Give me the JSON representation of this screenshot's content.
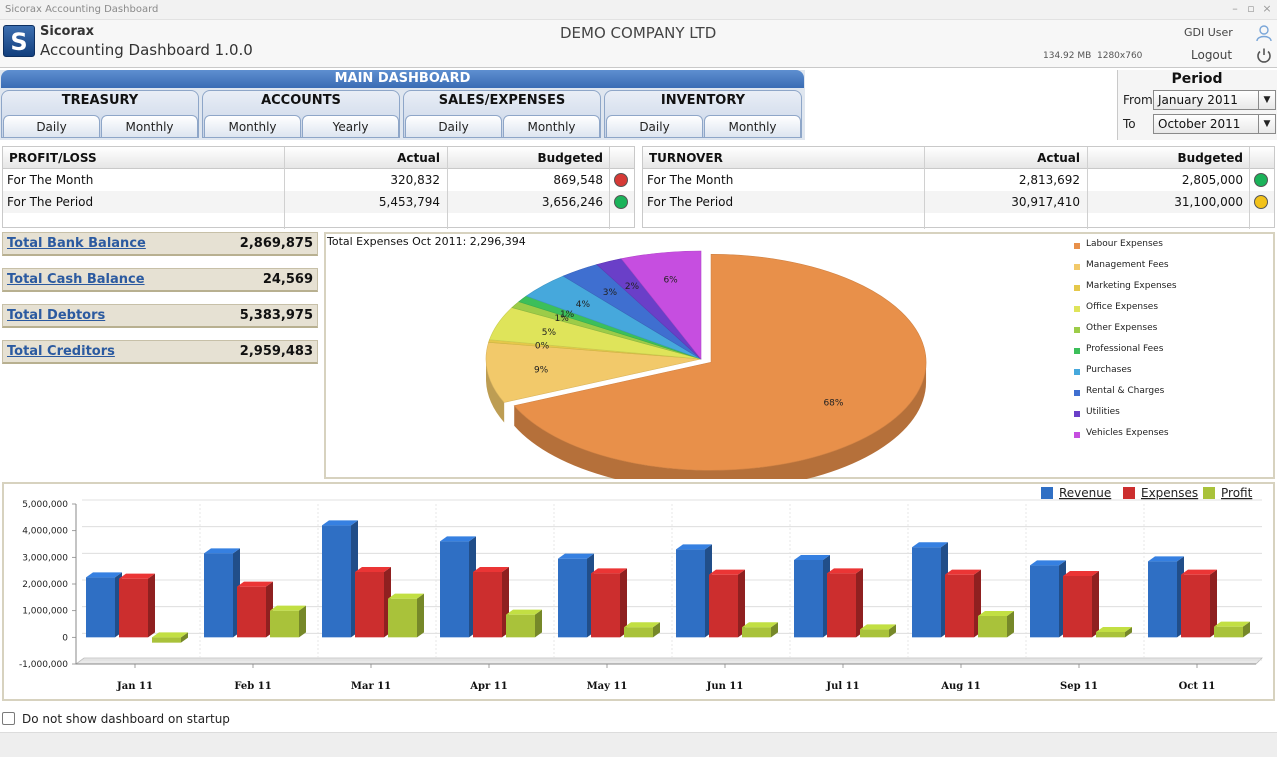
{
  "window": {
    "title": "Sicorax Accounting Dashboard",
    "controls": [
      "–",
      "▫",
      "×"
    ]
  },
  "header": {
    "brand": "Sicorax",
    "app_title": "Accounting Dashboard 1.0.0",
    "company": "DEMO COMPANY LTD",
    "user": "GDI User",
    "logout": "Logout",
    "memory": "134.92 MB",
    "resolution": "1280x760",
    "icons": [
      "app-logo-icon",
      "user-icon",
      "power-icon"
    ]
  },
  "nav": {
    "main": "MAIN DASHBOARD",
    "groups": [
      {
        "label": "TREASURY",
        "tabs": [
          "Daily",
          "Monthly"
        ]
      },
      {
        "label": "ACCOUNTS",
        "tabs": [
          "Monthly",
          "Yearly"
        ]
      },
      {
        "label": "SALES/EXPENSES",
        "tabs": [
          "Daily",
          "Monthly"
        ]
      },
      {
        "label": "INVENTORY",
        "tabs": [
          "Daily",
          "Monthly"
        ]
      }
    ]
  },
  "period": {
    "title": "Period",
    "from_label": "From",
    "from_value": "January 2011",
    "to_label": "To",
    "to_value": "October 2011",
    "dropdown_arrow": "▼"
  },
  "profit_loss": {
    "headers": [
      "PROFIT/LOSS",
      "Actual",
      "Budgeted"
    ],
    "rows": [
      {
        "label": "For The Month",
        "actual": "320,832",
        "budgeted": "869,548",
        "status_color": "#d63a36"
      },
      {
        "label": "For The Period",
        "actual": "5,453,794",
        "budgeted": "3,656,246",
        "status_color": "#1bb35a"
      }
    ]
  },
  "turnover": {
    "headers": [
      "TURNOVER",
      "Actual",
      "Budgeted"
    ],
    "rows": [
      {
        "label": "For The Month",
        "actual": "2,813,692",
        "budgeted": "2,805,000",
        "status_color": "#1bb35a"
      },
      {
        "label": "For The Period",
        "actual": "30,917,410",
        "budgeted": "31,100,000",
        "status_color": "#f2c21a"
      }
    ]
  },
  "balances": [
    {
      "label": "Total Bank Balance",
      "value": "2,869,875"
    },
    {
      "label": "Total Cash Balance",
      "value": "24,569"
    },
    {
      "label": "Total Debtors",
      "value": "5,383,975"
    },
    {
      "label": "Total Creditors",
      "value": "2,959,483"
    }
  ],
  "pie": {
    "title": "Total Expenses Oct 2011: 2,296,394",
    "slices": [
      {
        "name": "Labour Expenses",
        "percent": 68,
        "label": "68%",
        "color": "#e8904a"
      },
      {
        "name": "Management Fees",
        "percent": 9,
        "label": "9%",
        "color": "#f2c96a"
      },
      {
        "name": "Marketing Expenses",
        "percent": 0,
        "label": "0%",
        "color": "#e5c84a"
      },
      {
        "name": "Office Expenses",
        "percent": 5,
        "label": "5%",
        "color": "#dfe45a"
      },
      {
        "name": "Other Expenses",
        "percent": 1,
        "label": "1%",
        "color": "#9ccc48"
      },
      {
        "name": "Professional Fees",
        "percent": 1,
        "label": "1%",
        "color": "#3cbf5a"
      },
      {
        "name": "Purchases",
        "percent": 4,
        "label": "4%",
        "color": "#46a8dc"
      },
      {
        "name": "Rental & Charges",
        "percent": 3,
        "label": "3%",
        "color": "#3f6fd0"
      },
      {
        "name": "Utilities",
        "percent": 2,
        "label": "2%",
        "color": "#6a3fc8"
      },
      {
        "name": "Vehicles Expenses",
        "percent": 6,
        "label": "6%",
        "color": "#c64ee0"
      }
    ]
  },
  "chart_data": {
    "type": "bar",
    "categories": [
      "Jan 11",
      "Feb 11",
      "Mar 11",
      "Apr 11",
      "May 11",
      "Jun 11",
      "Jul 11",
      "Aug 11",
      "Sep 11",
      "Oct 11"
    ],
    "series": [
      {
        "name": "Revenue",
        "color": "#2f6fc4",
        "values": [
          2250000,
          3150000,
          4200000,
          3600000,
          2950000,
          3300000,
          2900000,
          3380000,
          2700000,
          2850000
        ]
      },
      {
        "name": "Expenses",
        "color": "#cc2e2e",
        "values": [
          2200000,
          1900000,
          2450000,
          2450000,
          2400000,
          2350000,
          2400000,
          2350000,
          2300000,
          2350000
        ]
      },
      {
        "name": "Profit",
        "color": "#a9c23a",
        "values": [
          -200000,
          1000000,
          1450000,
          850000,
          380000,
          380000,
          300000,
          800000,
          200000,
          400000
        ]
      }
    ],
    "yticks": [
      "5,000,000",
      "4,000,000",
      "3,000,000",
      "2,000,000",
      "1,000,000",
      "0",
      "-1,000,000"
    ],
    "ylim": [
      -1000000,
      5000000
    ],
    "legend_position": "top-right",
    "grid": true
  },
  "footer": {
    "startup_label": "Do not show dashboard on startup"
  }
}
